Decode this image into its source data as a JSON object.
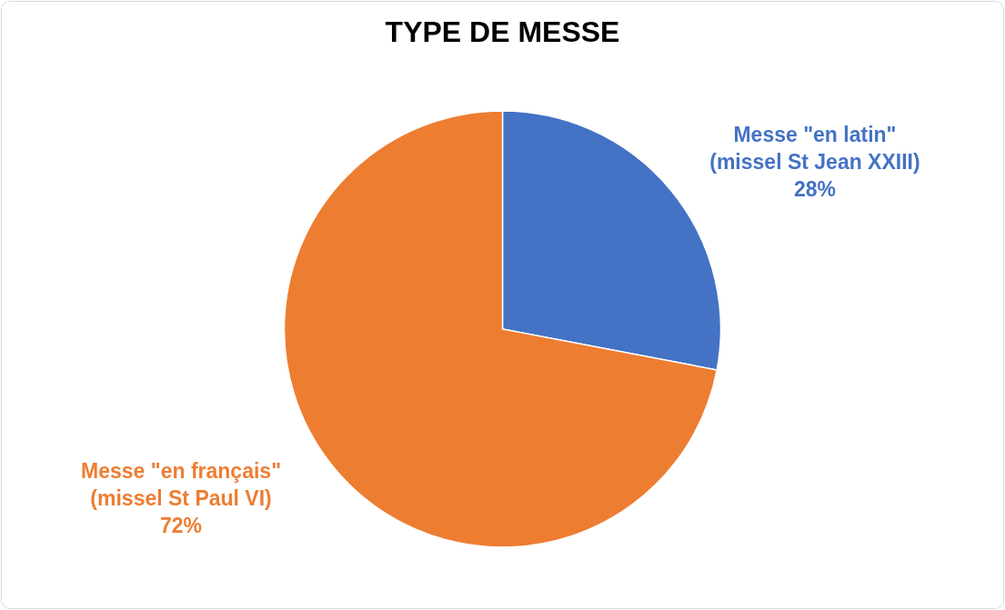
{
  "chart_data": {
    "type": "pie",
    "title": "TYPE DE MESSE",
    "categories": [
      "Messe \"en latin\"\n(missel St Jean XXIII)",
      "Messe \"en français\"\n(missel St Paul VI)"
    ],
    "values": [
      28,
      72
    ],
    "colors": [
      "#4472c4",
      "#ed7d31"
    ],
    "value_labels": [
      "28%",
      "72%"
    ]
  }
}
